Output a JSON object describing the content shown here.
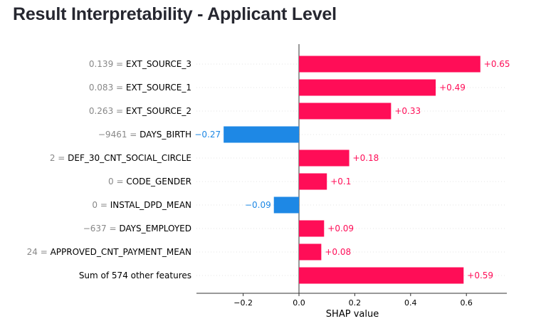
{
  "page": {
    "title": "Result Interpretability - Applicant Level"
  },
  "colors": {
    "positive": "#ff0d57",
    "negative": "#1e88e5"
  },
  "chart_data": {
    "type": "bar",
    "orientation": "horizontal",
    "xlabel": "SHAP value",
    "xlim": [
      -0.37,
      0.75
    ],
    "xticks": [
      -0.2,
      0.0,
      0.2,
      0.4,
      0.6
    ],
    "xtick_labels": [
      "−0.2",
      "0.0",
      "0.2",
      "0.4",
      "0.6"
    ],
    "features": [
      {
        "value_text": "0.139",
        "name": "EXT_SOURCE_3",
        "shap": 0.65,
        "label": "+0.65"
      },
      {
        "value_text": "0.083",
        "name": "EXT_SOURCE_1",
        "shap": 0.49,
        "label": "+0.49"
      },
      {
        "value_text": "0.263",
        "name": "EXT_SOURCE_2",
        "shap": 0.33,
        "label": "+0.33"
      },
      {
        "value_text": "−9461",
        "name": "DAYS_BIRTH",
        "shap": -0.27,
        "label": "−0.27"
      },
      {
        "value_text": "2",
        "name": "DEF_30_CNT_SOCIAL_CIRCLE",
        "shap": 0.18,
        "label": "+0.18"
      },
      {
        "value_text": "0",
        "name": "CODE_GENDER",
        "shap": 0.1,
        "label": "+0.1"
      },
      {
        "value_text": "0",
        "name": "INSTAL_DPD_MEAN",
        "shap": -0.09,
        "label": "−0.09"
      },
      {
        "value_text": "−637",
        "name": "DAYS_EMPLOYED",
        "shap": 0.09,
        "label": "+0.09"
      },
      {
        "value_text": "24",
        "name": "APPROVED_CNT_PAYMENT_MEAN",
        "shap": 0.08,
        "label": "+0.08"
      },
      {
        "value_text": "",
        "name": "Sum of 574 other features",
        "shap": 0.59,
        "label": "+0.59"
      }
    ]
  }
}
